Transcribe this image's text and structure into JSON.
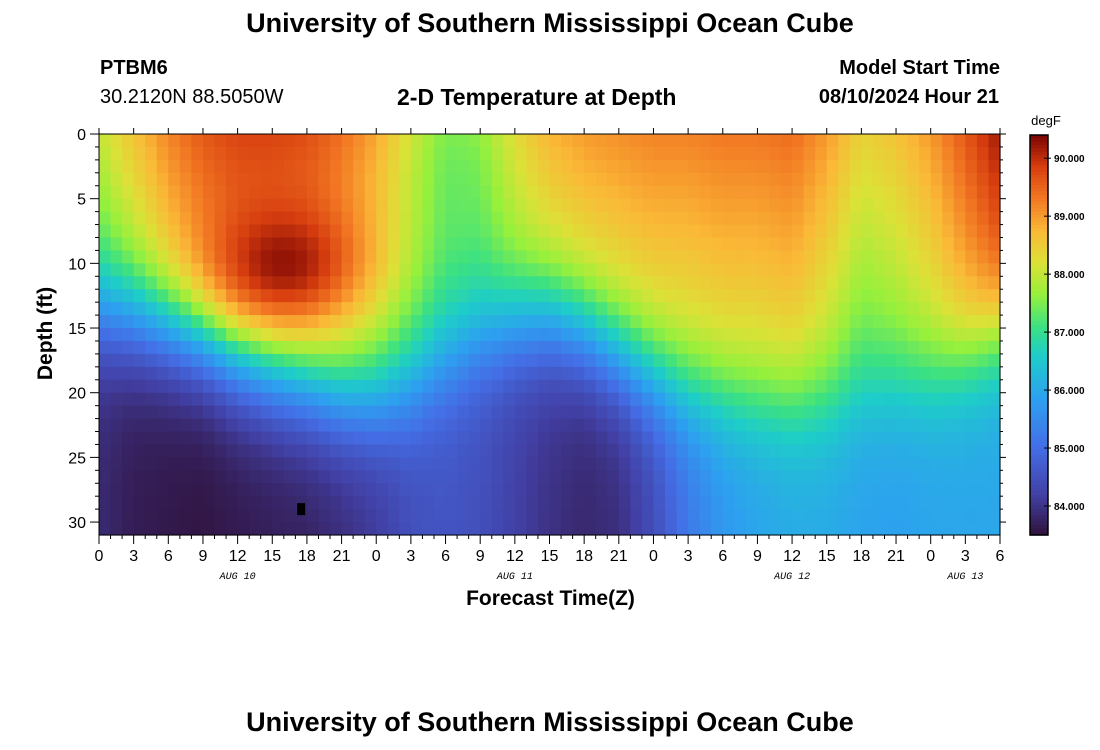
{
  "page": {
    "title": "University of Southern Mississippi Ocean Cube",
    "footer_title": "University of Southern Mississippi Ocean Cube"
  },
  "header": {
    "station": "PTBM6",
    "coordinates": "30.2120N  88.5050W",
    "subtitle": "2-D Temperature at Depth",
    "model_start_label": "Model Start Time",
    "model_start_value": "08/10/2024 Hour 21"
  },
  "chart_data": {
    "type": "heatmap",
    "title": "2-D Temperature at Depth",
    "xlabel": "Forecast Time(Z)",
    "ylabel": "Depth (ft)",
    "x_range_hours": [
      0,
      78
    ],
    "x_tick_labels": [
      "0",
      "3",
      "6",
      "9",
      "12",
      "15",
      "18",
      "21",
      "0",
      "3",
      "6",
      "9",
      "12",
      "15",
      "18",
      "21",
      "0",
      "3",
      "6",
      "9",
      "12",
      "15",
      "18",
      "21",
      "0",
      "3",
      "6"
    ],
    "date_labels": [
      {
        "text": "AUG 10",
        "hour": 12
      },
      {
        "text": "AUG 11",
        "hour": 36
      },
      {
        "text": "AUG 12",
        "hour": 60
      },
      {
        "text": "AUG 13",
        "hour": 75
      }
    ],
    "y_range_ft": [
      0,
      31
    ],
    "y_tick_labels": [
      "0",
      "5",
      "10",
      "15",
      "20",
      "25",
      "30"
    ],
    "y_tick_values": [
      0,
      5,
      10,
      15,
      20,
      25,
      30
    ],
    "colorbar": {
      "units": "degF",
      "range": [
        83.5,
        90.4
      ],
      "tick_values": [
        84,
        85,
        86,
        87,
        88,
        89,
        90
      ],
      "tick_labels": [
        "84.000",
        "85.000",
        "86.000",
        "87.000",
        "88.000",
        "89.000",
        "90.000"
      ]
    },
    "surface_temp_by_3h": [
      88.0,
      88.6,
      89.2,
      89.6,
      89.8,
      89.8,
      89.7,
      89.4,
      89.0,
      88.4,
      87.9,
      87.9,
      88.4,
      88.8,
      89.0,
      89.1,
      89.2,
      89.2,
      89.3,
      89.3,
      89.4,
      89.0,
      88.4,
      88.6,
      89.0,
      89.6,
      90.2
    ],
    "thermocline_depth_ft_by_3h": [
      14.0,
      14.3,
      15.0,
      16.0,
      17.5,
      18.6,
      19.5,
      20.5,
      20.8,
      20.0,
      18.2,
      16.3,
      15.0,
      14.5,
      15.5,
      17.3,
      19.0,
      20.3,
      20.8,
      21.3,
      21.5,
      21.5,
      21.0,
      20.2,
      19.5,
      18.0,
      16.0
    ],
    "bottom_temp_by_3h": [
      84.0,
      83.8,
      83.7,
      83.6,
      83.6,
      83.6,
      83.6,
      83.7,
      83.9,
      84.3,
      84.5,
      84.5,
      84.3,
      84.1,
      83.9,
      83.9,
      84.3,
      85.0,
      85.5,
      85.7,
      85.8,
      85.8,
      85.7,
      85.7,
      85.8,
      85.9,
      86.0
    ],
    "thermocline_width_ft": 2.6,
    "warm_core": {
      "hour": 16,
      "depth_ft": 10,
      "temp": 90.4
    },
    "marker": {
      "hour": 17.5,
      "depth_ft": 29.0
    }
  }
}
